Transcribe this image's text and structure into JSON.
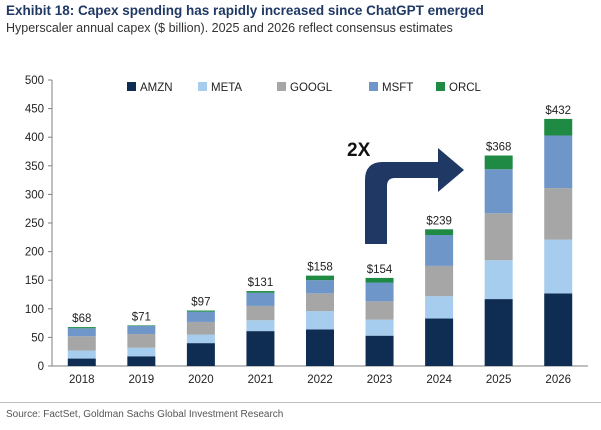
{
  "header": {
    "title": "Exhibit 18: Capex spending has rapidly increased since ChatGPT emerged",
    "subtitle": "Hyperscaler annual capex ($ billion). 2025 and 2026 reflect consensus estimates"
  },
  "footer": {
    "source": "Source: FactSet, Goldman Sachs Global Investment Research"
  },
  "chart_data": {
    "type": "bar",
    "stacked": true,
    "title": "Exhibit 18: Capex spending has rapidly increased since ChatGPT emerged",
    "subtitle": "Hyperscaler annual capex ($ billion). 2025 and 2026 reflect consensus estimates",
    "xlabel": "",
    "ylabel": "",
    "ylim": [
      0,
      500
    ],
    "yticks": [
      "0",
      "50",
      "100",
      "150",
      "200",
      "250",
      "300",
      "350",
      "400",
      "450",
      "500"
    ],
    "categories": [
      "2018",
      "2019",
      "2020",
      "2021",
      "2022",
      "2023",
      "2024",
      "2025",
      "2026"
    ],
    "series": [
      {
        "name": "AMZN",
        "color": "#0f2d52",
        "values": [
          13,
          17,
          40,
          61,
          64,
          53,
          83,
          117,
          127
        ]
      },
      {
        "name": "META",
        "color": "#a7cdee",
        "values": [
          14,
          15,
          15,
          19,
          32,
          28,
          39,
          68,
          94
        ]
      },
      {
        "name": "GOOGL",
        "color": "#a6a6a6",
        "values": [
          25,
          24,
          22,
          25,
          31,
          32,
          53,
          82,
          90
        ]
      },
      {
        "name": "MSFT",
        "color": "#6f96c9",
        "values": [
          14,
          14,
          18,
          23,
          23,
          33,
          54,
          77,
          92
        ]
      },
      {
        "name": "ORCL",
        "color": "#1e8a43",
        "values": [
          2,
          1,
          2,
          3,
          8,
          8,
          10,
          24,
          29
        ]
      }
    ],
    "totals": [
      "$68",
      "$71",
      "$97",
      "$131",
      "$158",
      "$154",
      "$239",
      "$368",
      "$432"
    ],
    "legend": [
      "AMZN",
      "META",
      "GOOGL",
      "MSFT",
      "ORCL"
    ],
    "legend_position": "top",
    "grid": false,
    "annotation": {
      "text": "2X",
      "arrow_color": "#1f3864"
    }
  }
}
